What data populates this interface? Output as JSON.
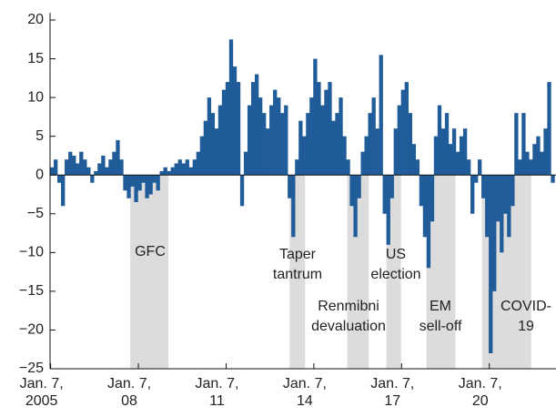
{
  "chart_data": {
    "type": "bar",
    "color": "#1f5c99",
    "shade_color": "#dcdcdc",
    "x": [
      2005.0,
      2005.125,
      2005.25,
      2005.375,
      2005.5,
      2005.625,
      2005.75,
      2005.875,
      2006.0,
      2006.125,
      2006.25,
      2006.375,
      2006.5,
      2006.625,
      2006.75,
      2006.875,
      2007.0,
      2007.125,
      2007.25,
      2007.375,
      2007.5,
      2007.625,
      2007.75,
      2007.875,
      2008.0,
      2008.125,
      2008.25,
      2008.375,
      2008.5,
      2008.625,
      2008.75,
      2008.875,
      2009.0,
      2009.125,
      2009.25,
      2009.375,
      2009.5,
      2009.625,
      2009.75,
      2009.875,
      2010.0,
      2010.125,
      2010.25,
      2010.375,
      2010.5,
      2010.625,
      2010.75,
      2010.875,
      2011.0,
      2011.125,
      2011.25,
      2011.375,
      2011.5,
      2011.625,
      2011.75,
      2011.875,
      2012.0,
      2012.125,
      2012.25,
      2012.375,
      2012.5,
      2012.625,
      2012.75,
      2012.875,
      2013.0,
      2013.125,
      2013.25,
      2013.375,
      2013.5,
      2013.625,
      2013.75,
      2013.875,
      2014.0,
      2014.125,
      2014.25,
      2014.375,
      2014.5,
      2014.625,
      2014.75,
      2014.875,
      2015.0,
      2015.125,
      2015.25,
      2015.375,
      2015.5,
      2015.625,
      2015.75,
      2015.875,
      2016.0,
      2016.125,
      2016.25,
      2016.375,
      2016.5,
      2016.625,
      2016.75,
      2016.875,
      2017.0,
      2017.125,
      2017.25,
      2017.375,
      2017.5,
      2017.625,
      2017.75,
      2017.875,
      2018.0,
      2018.125,
      2018.25,
      2018.375,
      2018.5,
      2018.625,
      2018.75,
      2018.875,
      2019.0,
      2019.125,
      2019.25,
      2019.375,
      2019.5,
      2019.625,
      2019.75,
      2019.875,
      2020.0,
      2020.125,
      2020.25,
      2020.375,
      2020.5,
      2020.625,
      2020.75,
      2020.875,
      2021.0,
      2021.125,
      2021.25,
      2021.375,
      2021.5,
      2021.625,
      2021.75,
      2021.875,
      2022.0,
      2022.125
    ],
    "values": [
      1,
      2,
      -1,
      -4,
      2,
      3,
      2.5,
      1.5,
      3,
      2,
      1,
      -1,
      0.5,
      1.5,
      2.5,
      1,
      2,
      3,
      4.5,
      2,
      -2,
      -3,
      -1.5,
      -3.5,
      -2,
      -1,
      -3,
      -2.5,
      -1,
      -2,
      0.5,
      1,
      0.5,
      1,
      1.5,
      2,
      1.5,
      2,
      1,
      2,
      3,
      5,
      7,
      10,
      8,
      6,
      9,
      11,
      12,
      17.5,
      14,
      12,
      -4,
      3,
      9,
      12,
      13,
      10,
      8,
      6,
      9,
      11,
      10,
      8,
      9,
      -3,
      -8,
      2,
      7,
      5,
      8,
      10,
      15,
      12,
      9,
      11,
      12,
      7,
      8,
      10,
      5,
      2,
      -4,
      -8,
      -3,
      3,
      5,
      8,
      10,
      6,
      15.5,
      -5,
      -9,
      -3,
      6,
      9,
      11,
      12,
      8,
      4,
      2,
      -4,
      -8,
      -12,
      -6,
      5,
      9,
      6,
      8,
      4,
      6,
      3,
      5,
      6,
      2,
      -5,
      -1,
      2,
      -3,
      -8,
      -23,
      -15,
      -6,
      -10,
      -5,
      -8,
      -4,
      8,
      2,
      8,
      3,
      2,
      4,
      5,
      3,
      6,
      12,
      -1
    ],
    "xlim": [
      2005.0,
      2022.3
    ],
    "ylim": [
      -25,
      20
    ],
    "yticks": [
      {
        "value": -25,
        "label": "−25"
      },
      {
        "value": -20,
        "label": "−20"
      },
      {
        "value": -15,
        "label": "−15"
      },
      {
        "value": -10,
        "label": "−10"
      },
      {
        "value": -5,
        "label": "−5"
      },
      0,
      5,
      10,
      15,
      20
    ],
    "xticks": [
      {
        "value": 2005.02,
        "label": "Jan. 7, 2005"
      },
      {
        "value": 2008.02,
        "label": "Jan. 7, 08"
      },
      {
        "value": 2011.02,
        "label": "Jan. 7, 11"
      },
      {
        "value": 2014.02,
        "label": "Jan. 7, 14"
      },
      {
        "value": 2017.02,
        "label": "Jan. 7, 17"
      },
      {
        "value": 2020.02,
        "label": "Jan. 7, 20"
      }
    ],
    "shaded_periods": [
      {
        "start": 2007.74,
        "end": 2009.05,
        "label_lines": [
          "GFC"
        ]
      },
      {
        "start": 2013.19,
        "end": 2013.72,
        "label_lines": [
          "Taper",
          "tantrum"
        ]
      },
      {
        "start": 2015.16,
        "end": 2015.9,
        "label_lines": [
          "Renmibni",
          "devaluation"
        ]
      },
      {
        "start": 2016.5,
        "end": 2017.0,
        "label_lines": [
          "US",
          "election"
        ]
      },
      {
        "start": 2017.87,
        "end": 2018.86,
        "label_lines": [
          "EM",
          "sell-off"
        ]
      },
      {
        "start": 2019.77,
        "end": 2021.45,
        "label_lines": [
          "COVID-",
          "19"
        ]
      }
    ]
  }
}
